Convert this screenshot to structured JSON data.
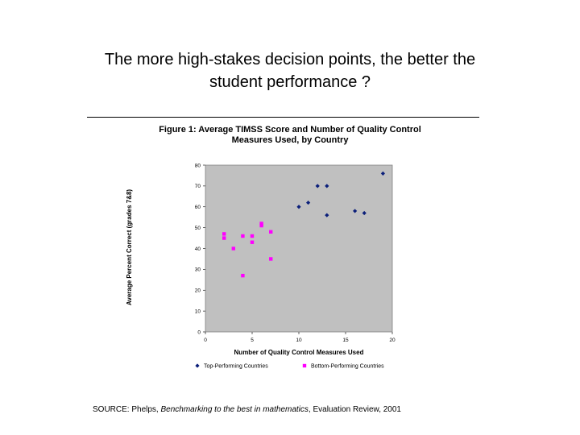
{
  "slide": {
    "title_line1": "The more high-stakes decision points, the better the",
    "title_line2": "student performance ?"
  },
  "source": {
    "prefix": "SOURCE: Phelps, ",
    "work": "Benchmarking to the best in mathematics",
    "suffix": ", Evaluation Review, 2001"
  },
  "colors": {
    "top": "#0b1f7a",
    "bottom": "#ff00ff",
    "plot_bg": "#c0c0c0"
  },
  "chart_data": {
    "type": "scatter",
    "title_line1": "Figure 1: Average TIMSS Score and Number of Quality Control",
    "title_line2": "Measures Used, by Country",
    "xlabel": "Number of Quality Control Measures Used",
    "ylabel": "Average Percent Correct (grades 7&8)",
    "xlim": [
      0,
      20
    ],
    "ylim": [
      0,
      80
    ],
    "x_ticks": [
      0,
      5,
      10,
      15,
      20
    ],
    "y_ticks": [
      0,
      10,
      20,
      30,
      40,
      50,
      60,
      70,
      80
    ],
    "grid": false,
    "legend_position": "bottom",
    "series": [
      {
        "name": "Top-Performing Countries",
        "marker": "diamond",
        "points": [
          [
            19,
            76
          ],
          [
            12,
            70
          ],
          [
            13,
            70
          ],
          [
            11,
            62
          ],
          [
            10,
            60
          ],
          [
            16,
            58
          ],
          [
            17,
            57
          ],
          [
            13,
            56
          ]
        ]
      },
      {
        "name": "Bottom-Performing Countries",
        "marker": "square",
        "points": [
          [
            6,
            52
          ],
          [
            6,
            51
          ],
          [
            7,
            48
          ],
          [
            2,
            47
          ],
          [
            4,
            46
          ],
          [
            5,
            46
          ],
          [
            2,
            45
          ],
          [
            5,
            43
          ],
          [
            3,
            40
          ],
          [
            7,
            35
          ],
          [
            4,
            27
          ]
        ]
      }
    ]
  }
}
